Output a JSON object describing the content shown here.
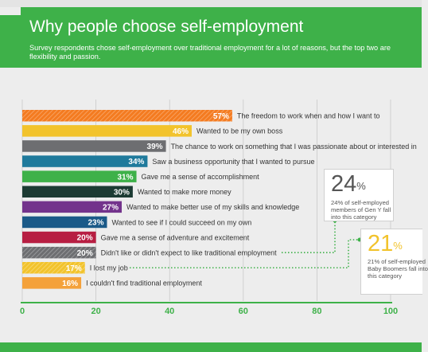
{
  "header": {
    "title": "Why people choose self-employment",
    "subtitle": "Survey respondents chose self-employment over traditional employment for a lot of reasons, but the top two are flexibility and passion."
  },
  "chart_data": {
    "type": "bar",
    "orientation": "horizontal",
    "title": "",
    "xlabel": "",
    "ylabel": "",
    "xlim": [
      0,
      100
    ],
    "xticks": [
      0,
      20,
      40,
      60,
      80,
      100
    ],
    "grid": true,
    "value_suffix": "%",
    "bars": [
      {
        "label": "The freedom to work when and how I want to",
        "value": 57,
        "color": "#f47b20",
        "pattern": "hatch"
      },
      {
        "label": "Wanted to be my own boss",
        "value": 46,
        "color": "#f2c32c",
        "pattern": "solid"
      },
      {
        "label": "The chance to work on something that I was passionate about or interested in",
        "value": 39,
        "color": "#6d6e71",
        "pattern": "solid"
      },
      {
        "label": "Saw a business opportunity that I wanted to pursue",
        "value": 34,
        "color": "#1f7a9c",
        "pattern": "solid"
      },
      {
        "label": "Gave me a sense of accomplishment",
        "value": 31,
        "color": "#3eb149",
        "pattern": "solid"
      },
      {
        "label": "Wanted to make more money",
        "value": 30,
        "color": "#1c3b33",
        "pattern": "solid"
      },
      {
        "label": "Wanted to make better use of my skills and knowledge",
        "value": 27,
        "color": "#73338c",
        "pattern": "solid"
      },
      {
        "label": "Wanted to see if I could succeed on my own",
        "value": 23,
        "color": "#1b5a88",
        "pattern": "solid"
      },
      {
        "label": "Gave me a sense of adventure and excitement",
        "value": 20,
        "color": "#b71e42",
        "pattern": "solid"
      },
      {
        "label": "Didn't like or didn't expect to like traditional employment",
        "value": 20,
        "color": "#6d6e71",
        "pattern": "hatch"
      },
      {
        "label": "I lost my job",
        "value": 17,
        "color": "#f2c32c",
        "pattern": "hatch"
      },
      {
        "label": "I couldn't find traditional employment",
        "value": 16,
        "color": "#f4a13a",
        "pattern": "solid"
      }
    ],
    "callouts": [
      {
        "value_number": "24",
        "value_suffix": "%",
        "text": "24% of self-employed members of Gen Y fall into this category",
        "points_to_bar": 9,
        "color": "#555555"
      },
      {
        "value_number": "21",
        "value_suffix": "%",
        "text_lines": [
          "21% of self-employed",
          "Baby Boomers fall into",
          "this category"
        ],
        "points_to_bar": 10,
        "color": "#f2c32c"
      }
    ],
    "colors": {
      "accent": "#3eb149",
      "grid": "#c9c9c9",
      "axis": "#3eb149"
    }
  }
}
